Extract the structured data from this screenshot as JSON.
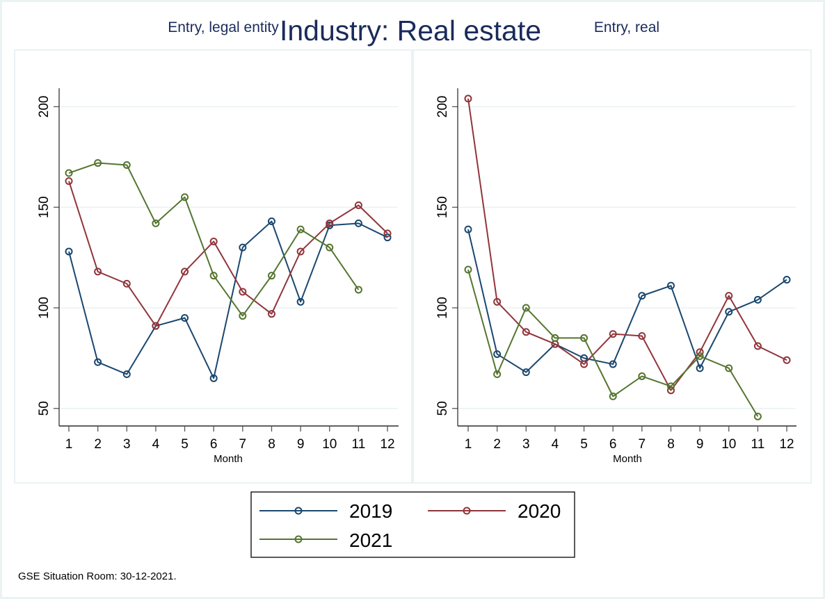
{
  "chart_data": {
    "type": "line",
    "title": "Industry: Real estate",
    "note": "GSE Situation Room: 30-12-2021.",
    "colors": {
      "2019": "#1a476f",
      "2020": "#90353b",
      "2021": "#55752f"
    },
    "legend": {
      "placement": "bottom",
      "entries": [
        "2019",
        "2020",
        "2021"
      ]
    },
    "panels": [
      {
        "subtitle": "Entry, legal entity",
        "xlabel": "Month",
        "ylabel": "",
        "x": [
          1,
          2,
          3,
          4,
          5,
          6,
          7,
          8,
          9,
          10,
          11,
          12
        ],
        "xticks": [
          "1",
          "2",
          "3",
          "4",
          "5",
          "6",
          "7",
          "8",
          "9",
          "10",
          "11",
          "12"
        ],
        "yticks": [
          "50",
          "100",
          "150",
          "200"
        ],
        "ylim": [
          41,
          209
        ],
        "grid": true,
        "series": [
          {
            "name": "2019",
            "values": [
              128,
              73,
              67,
              91,
              95,
              65,
              130,
              143,
              103,
              141,
              142,
              135
            ]
          },
          {
            "name": "2020",
            "values": [
              163,
              118,
              112,
              91,
              118,
              133,
              108,
              97,
              128,
              142,
              151,
              137
            ]
          },
          {
            "name": "2021",
            "values": [
              167,
              172,
              171,
              142,
              155,
              116,
              96,
              116,
              139,
              130,
              109,
              null
            ]
          }
        ]
      },
      {
        "subtitle": "Entry, real",
        "xlabel": "Month",
        "ylabel": "",
        "x": [
          1,
          2,
          3,
          4,
          5,
          6,
          7,
          8,
          9,
          10,
          11,
          12
        ],
        "xticks": [
          "1",
          "2",
          "3",
          "4",
          "5",
          "6",
          "7",
          "8",
          "9",
          "10",
          "11",
          "12"
        ],
        "yticks": [
          "50",
          "100",
          "150",
          "200"
        ],
        "ylim": [
          41,
          209
        ],
        "grid": true,
        "series": [
          {
            "name": "2019",
            "values": [
              139,
              77,
              68,
              82,
              75,
              72,
              106,
              111,
              70,
              98,
              104,
              114
            ]
          },
          {
            "name": "2020",
            "values": [
              204,
              103,
              88,
              82,
              72,
              87,
              86,
              59,
              78,
              106,
              81,
              74
            ]
          },
          {
            "name": "2021",
            "values": [
              119,
              67,
              100,
              85,
              85,
              56,
              66,
              61,
              76,
              70,
              46,
              null
            ]
          }
        ]
      }
    ]
  }
}
